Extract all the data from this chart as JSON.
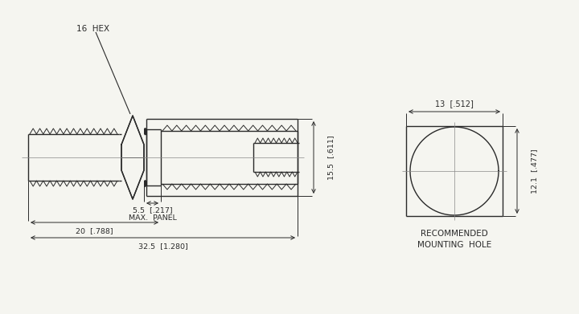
{
  "bg_color": "#f5f5f0",
  "line_color": "#2a2a2a",
  "dim_color": "#2a2a2a",
  "text_color": "#2a2a2a",
  "fig_width": 7.2,
  "fig_height": 3.91,
  "labels": {
    "hex": "16  HEX",
    "dim_15_5": "15.5  [.611]",
    "dim_5_5": "5.5  [.217]",
    "max_panel": "MAX.  PANEL",
    "dim_20": "20  [.788]",
    "dim_32_5": "32.5  [1.280]",
    "dim_13": "13  [.512]",
    "dim_12_1": "12.1  [.477]",
    "rec_mount1": "RECOMMENDED",
    "rec_mount2": "MOUNTING  HOLE"
  }
}
